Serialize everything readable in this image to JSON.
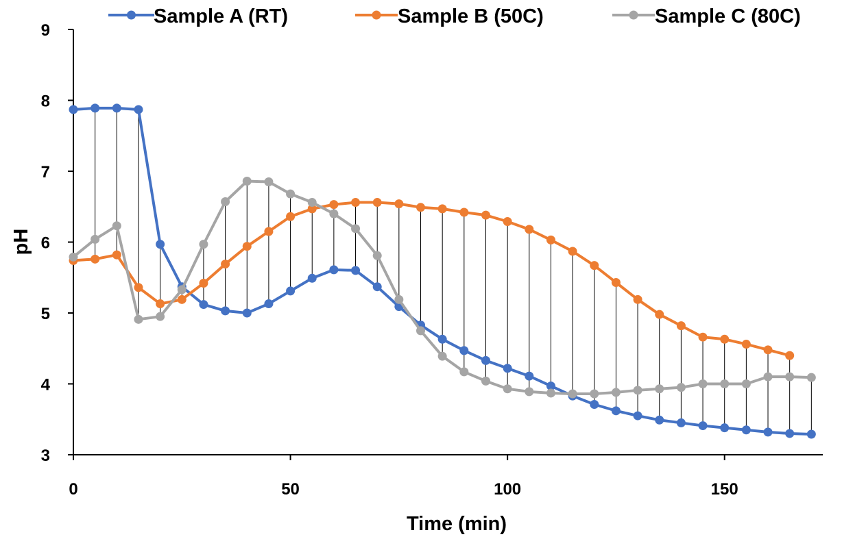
{
  "chart_data": {
    "type": "line",
    "title": "",
    "xlabel": "Time (min)",
    "ylabel": "pH",
    "xlim": [
      0,
      172
    ],
    "ylim": [
      3,
      9
    ],
    "xticks": [
      0,
      50,
      100,
      150
    ],
    "yticks": [
      3,
      4,
      5,
      6,
      7,
      8,
      9
    ],
    "grid": false,
    "legend": "top",
    "drop_lines": true,
    "series": [
      {
        "name": "Sample A (RT)",
        "color": "#4472C4",
        "x": [
          0,
          5,
          10,
          15,
          20,
          25,
          30,
          35,
          40,
          45,
          50,
          55,
          60,
          65,
          70,
          75,
          80,
          85,
          90,
          95,
          100,
          105,
          110,
          115,
          120,
          125,
          130,
          135,
          140,
          145,
          150,
          155,
          160,
          165,
          170
        ],
        "y": [
          7.87,
          7.89,
          7.89,
          7.87,
          5.97,
          5.37,
          5.12,
          5.03,
          5.0,
          5.13,
          5.31,
          5.49,
          5.61,
          5.6,
          5.37,
          5.09,
          4.83,
          4.63,
          4.47,
          4.33,
          4.22,
          4.11,
          3.97,
          3.83,
          3.71,
          3.62,
          3.55,
          3.49,
          3.45,
          3.41,
          3.38,
          3.35,
          3.32,
          3.3,
          3.29
        ]
      },
      {
        "name": "Sample B (50C)",
        "color": "#ED7D31",
        "x": [
          0,
          5,
          10,
          15,
          20,
          25,
          30,
          35,
          40,
          45,
          50,
          55,
          60,
          65,
          70,
          75,
          80,
          85,
          90,
          95,
          100,
          105,
          110,
          115,
          120,
          125,
          130,
          135,
          140,
          145,
          150,
          155,
          160,
          165
        ],
        "y": [
          5.74,
          5.76,
          5.82,
          5.36,
          5.13,
          5.19,
          5.42,
          5.69,
          5.94,
          6.15,
          6.36,
          6.47,
          6.53,
          6.56,
          6.56,
          6.54,
          6.49,
          6.47,
          6.42,
          6.38,
          6.29,
          6.18,
          6.03,
          5.87,
          5.67,
          5.43,
          5.19,
          4.98,
          4.82,
          4.66,
          4.63,
          4.56,
          4.48,
          4.4
        ]
      },
      {
        "name": "Sample C (80C)",
        "color": "#A5A5A5",
        "x": [
          0,
          5,
          10,
          15,
          20,
          25,
          30,
          35,
          40,
          45,
          50,
          55,
          60,
          65,
          70,
          75,
          80,
          85,
          90,
          95,
          100,
          105,
          110,
          115,
          120,
          125,
          130,
          135,
          140,
          145,
          150,
          155,
          160,
          165,
          170
        ],
        "y": [
          5.79,
          6.04,
          6.23,
          4.91,
          4.95,
          5.33,
          5.97,
          6.57,
          6.86,
          6.85,
          6.68,
          6.56,
          6.4,
          6.19,
          5.81,
          5.19,
          4.75,
          4.39,
          4.17,
          4.04,
          3.93,
          3.89,
          3.87,
          3.86,
          3.86,
          3.88,
          3.91,
          3.93,
          3.95,
          4.0,
          4.0,
          4.0,
          4.1,
          4.1,
          4.09
        ]
      }
    ]
  }
}
